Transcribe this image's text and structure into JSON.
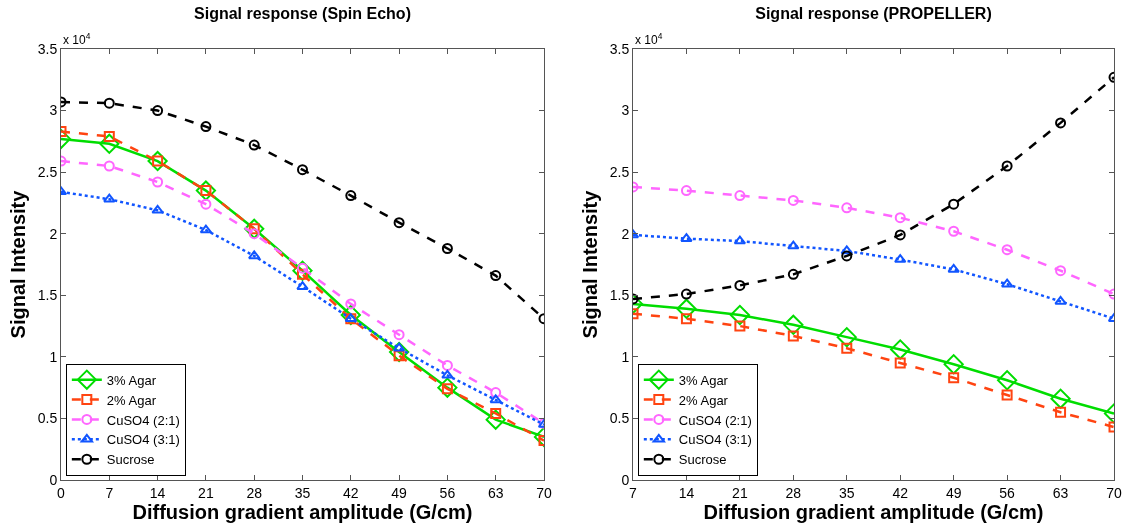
{
  "chart_data": [
    {
      "type": "line",
      "title": "Signal response (Spin Echo)",
      "xlabel": "Diffusion gradient amplitude (G/cm)",
      "ylabel": "Signal Intensity",
      "annotations": [
        "x 10$^{4}$"
      ],
      "x": [
        0,
        7,
        14,
        21,
        28,
        35,
        42,
        49,
        56,
        63,
        70
      ],
      "xlim": [
        0,
        70
      ],
      "xticks": [
        0,
        7,
        14,
        21,
        28,
        35,
        42,
        49,
        56,
        63,
        70
      ],
      "ylim": [
        0,
        3.5
      ],
      "yticks": [
        0,
        0.5,
        1,
        1.5,
        2,
        2.5,
        3,
        3.5
      ],
      "grid": false,
      "legend": "bottom left",
      "series": [
        {
          "name": "3% Agar",
          "color": "#00dd00",
          "marker": "diamond",
          "line_style": "solid",
          "values": [
            2.77,
            2.73,
            2.59,
            2.35,
            2.04,
            1.7,
            1.34,
            1.04,
            0.75,
            0.49,
            0.35
          ]
        },
        {
          "name": "2% Agar",
          "color": "#ff4411",
          "marker": "square",
          "line_style": "dashed",
          "values": [
            2.83,
            2.79,
            2.59,
            2.35,
            2.04,
            1.67,
            1.31,
            1.01,
            0.74,
            0.54,
            0.32
          ]
        },
        {
          "name": "CuSO4 (2:1)",
          "color": "#ff66ff",
          "marker": "circle",
          "line_style": "dashed",
          "values": [
            2.59,
            2.55,
            2.42,
            2.24,
            2.0,
            1.72,
            1.43,
            1.18,
            0.93,
            0.71,
            0.46
          ]
        },
        {
          "name": "CuSO4 (3:1)",
          "color": "#1155ff",
          "marker": "triangle",
          "line_style": "dotted",
          "values": [
            2.34,
            2.28,
            2.19,
            2.03,
            1.82,
            1.57,
            1.31,
            1.07,
            0.85,
            0.65,
            0.45
          ]
        },
        {
          "name": "Sucrose",
          "color": "#000000",
          "marker": "circle",
          "line_style": "dashed",
          "values": [
            3.07,
            3.06,
            3.0,
            2.87,
            2.72,
            2.52,
            2.31,
            2.09,
            1.88,
            1.66,
            1.31
          ]
        }
      ]
    },
    {
      "type": "line",
      "title": "Signal response (PROPELLER)",
      "xlabel": "Diffusion gradient amplitude (G/cm)",
      "ylabel": "Signal Intensity",
      "annotations": [
        "x 10$^{4}$"
      ],
      "x": [
        7,
        14,
        21,
        28,
        35,
        42,
        49,
        56,
        63,
        70
      ],
      "xlim": [
        7,
        70
      ],
      "xticks": [
        7,
        14,
        21,
        28,
        35,
        42,
        49,
        56,
        63,
        70
      ],
      "ylim": [
        0,
        3.5
      ],
      "yticks": [
        0,
        0.5,
        1,
        1.5,
        2,
        2.5,
        3,
        3.5
      ],
      "grid": false,
      "legend": "bottom left",
      "series": [
        {
          "name": "3% Agar",
          "color": "#00dd00",
          "marker": "diamond",
          "line_style": "solid",
          "values": [
            1.43,
            1.39,
            1.34,
            1.26,
            1.16,
            1.06,
            0.94,
            0.81,
            0.66,
            0.54
          ]
        },
        {
          "name": "2% Agar",
          "color": "#ff4411",
          "marker": "square",
          "line_style": "dashed",
          "values": [
            1.35,
            1.31,
            1.25,
            1.17,
            1.07,
            0.95,
            0.83,
            0.69,
            0.55,
            0.43
          ]
        },
        {
          "name": "CuSO4 (2:1)",
          "color": "#ff66ff",
          "marker": "circle",
          "line_style": "dashed",
          "values": [
            2.38,
            2.35,
            2.31,
            2.27,
            2.21,
            2.13,
            2.02,
            1.87,
            1.7,
            1.51
          ]
        },
        {
          "name": "CuSO4 (3:1)",
          "color": "#1155ff",
          "marker": "triangle",
          "line_style": "dotted",
          "values": [
            1.99,
            1.96,
            1.94,
            1.9,
            1.86,
            1.79,
            1.71,
            1.59,
            1.45,
            1.31
          ]
        },
        {
          "name": "Sucrose",
          "color": "#000000",
          "marker": "circle",
          "line_style": "dashed",
          "values": [
            1.47,
            1.51,
            1.58,
            1.67,
            1.82,
            1.99,
            2.24,
            2.55,
            2.9,
            3.27
          ]
        }
      ]
    }
  ]
}
